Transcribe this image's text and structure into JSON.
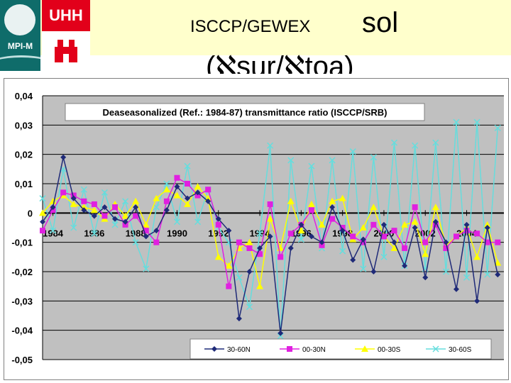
{
  "header": {
    "logo_left_text": "MPI-M",
    "logo_right_text": "UHH",
    "title_part1": "ISCCP/GEWEX",
    "title_part2": "sol",
    "title_line2": "(ℵsur/ℵtoa)"
  },
  "chart_data": {
    "type": "line",
    "title": "Deaseasonalized (Ref.: 1984-87) transmittance ratio (ISCCP/SRB)",
    "xlabel": "",
    "ylabel": "",
    "xlim": [
      1983.5,
      2005.8
    ],
    "ylim": [
      -0.05,
      0.04
    ],
    "x_ticks": [
      "1984",
      "1986",
      "1988",
      "1990",
      "1992",
      "1994",
      "1996",
      "1998",
      "2000",
      "2002",
      "2004"
    ],
    "y_ticks": [
      "0,04",
      "0,03",
      "0,02",
      "0,01",
      "0",
      "-0,01",
      "-0,02",
      "-0,03",
      "-0,04",
      "-0,05"
    ],
    "grid": true,
    "legend_position": "bottom-right",
    "x": [
      1983.5,
      1984.0,
      1984.5,
      1985.0,
      1985.5,
      1986.0,
      1986.5,
      1987.0,
      1987.5,
      1988.0,
      1988.5,
      1989.0,
      1989.5,
      1990.0,
      1990.5,
      1991.0,
      1991.5,
      1992.0,
      1992.5,
      1993.0,
      1993.5,
      1994.0,
      1994.5,
      1995.0,
      1995.5,
      1996.0,
      1996.5,
      1997.0,
      1997.5,
      1998.0,
      1998.5,
      1999.0,
      1999.5,
      2000.0,
      2000.5,
      2001.0,
      2001.5,
      2002.0,
      2002.5,
      2003.0,
      2003.5,
      2004.0,
      2004.5,
      2005.0,
      2005.5
    ],
    "series": [
      {
        "name": "30-60N",
        "color": "#1f2a78",
        "marker": "diamond",
        "values": [
          -0.003,
          0.002,
          0.019,
          0.005,
          0.001,
          -0.001,
          0.002,
          -0.002,
          -0.003,
          0.002,
          -0.008,
          -0.006,
          0.001,
          0.009,
          0.005,
          0.007,
          0.004,
          -0.002,
          -0.006,
          -0.036,
          -0.02,
          -0.012,
          -0.008,
          -0.041,
          -0.012,
          -0.004,
          -0.008,
          -0.01,
          0.002,
          -0.006,
          -0.016,
          -0.009,
          -0.02,
          -0.004,
          -0.01,
          -0.018,
          -0.005,
          -0.022,
          -0.003,
          -0.01,
          -0.026,
          -0.004,
          -0.03,
          -0.005,
          -0.021
        ]
      },
      {
        "name": "00-30N",
        "color": "#e020e0",
        "marker": "square",
        "values": [
          -0.006,
          0.001,
          0.007,
          0.006,
          0.004,
          0.003,
          -0.001,
          0.002,
          -0.004,
          -0.001,
          -0.006,
          -0.01,
          0.004,
          0.012,
          0.01,
          0.006,
          0.008,
          -0.004,
          -0.025,
          -0.01,
          -0.012,
          -0.014,
          0.003,
          -0.015,
          -0.007,
          -0.004,
          0.001,
          -0.011,
          -0.002,
          -0.005,
          -0.008,
          -0.01,
          -0.004,
          -0.008,
          -0.006,
          -0.012,
          0.002,
          -0.01,
          -0.004,
          -0.012,
          -0.008,
          -0.006,
          -0.007,
          -0.01,
          -0.01
        ]
      },
      {
        "name": "00-30S",
        "color": "#ffff00",
        "marker": "triangle",
        "values": [
          0.0,
          0.004,
          0.006,
          0.003,
          0.002,
          0.001,
          -0.002,
          0.003,
          -0.001,
          0.004,
          -0.004,
          0.005,
          0.008,
          0.006,
          0.003,
          0.009,
          0.005,
          -0.015,
          -0.018,
          -0.012,
          -0.01,
          -0.025,
          -0.002,
          -0.012,
          0.004,
          -0.006,
          0.003,
          -0.004,
          0.004,
          0.005,
          -0.009,
          -0.005,
          0.002,
          -0.008,
          -0.012,
          -0.004,
          -0.003,
          -0.014,
          0.002,
          -0.011,
          -0.008,
          -0.005,
          -0.015,
          -0.004,
          -0.017
        ]
      },
      {
        "name": "30-60S",
        "color": "#66dddd",
        "marker": "x",
        "values": [
          0.005,
          -0.006,
          0.015,
          -0.005,
          0.008,
          -0.007,
          0.007,
          -0.004,
          0.004,
          -0.01,
          -0.019,
          0.002,
          0.01,
          -0.003,
          0.016,
          -0.003,
          0.008,
          -0.005,
          -0.01,
          -0.022,
          -0.032,
          -0.007,
          0.023,
          -0.042,
          0.018,
          -0.009,
          0.016,
          -0.012,
          0.018,
          -0.013,
          0.021,
          -0.019,
          0.019,
          -0.015,
          0.024,
          -0.018,
          0.023,
          -0.019,
          0.024,
          -0.02,
          0.031,
          -0.022,
          0.031,
          -0.021,
          0.029
        ]
      }
    ]
  }
}
